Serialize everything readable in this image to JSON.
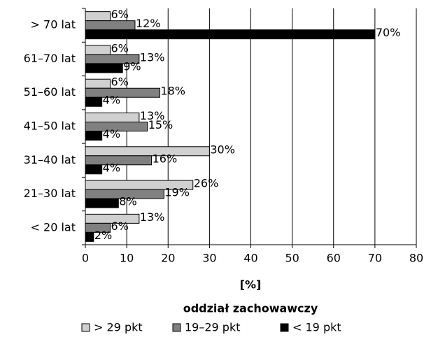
{
  "chart_data": {
    "type": "barh",
    "categories": [
      "> 70 lat",
      "61–70 lat",
      "51–60 lat",
      "41–50 lat",
      "31–40 lat",
      "21–30 lat",
      "< 20 lat"
    ],
    "series": [
      {
        "name": "> 29 pkt",
        "color": "#d0d0d0",
        "values": [
          6,
          6,
          6,
          13,
          30,
          26,
          13
        ],
        "value_labels": [
          "6%",
          "6%",
          "6%",
          "13%",
          "30%",
          "26%",
          "13%"
        ]
      },
      {
        "name": "19–29 pkt",
        "color": "#808080",
        "values": [
          12,
          13,
          18,
          15,
          16,
          19,
          6
        ],
        "value_labels": [
          "12%",
          "13%",
          "18%",
          "15%",
          "16%",
          "19%",
          "6%"
        ]
      },
      {
        "name": "< 19 pkt",
        "color": "#000000",
        "values": [
          70,
          9,
          4,
          4,
          4,
          8,
          2
        ],
        "value_labels": [
          "70%",
          "9%",
          "4%",
          "4%",
          "4%",
          "8%",
          "2%"
        ]
      }
    ],
    "xlim": [
      0,
      80
    ],
    "xticks": [
      0,
      10,
      20,
      30,
      40,
      50,
      60,
      70,
      80
    ],
    "xlabel": "[%]",
    "legend_title": "oddział zachowawczy",
    "grid": true
  }
}
